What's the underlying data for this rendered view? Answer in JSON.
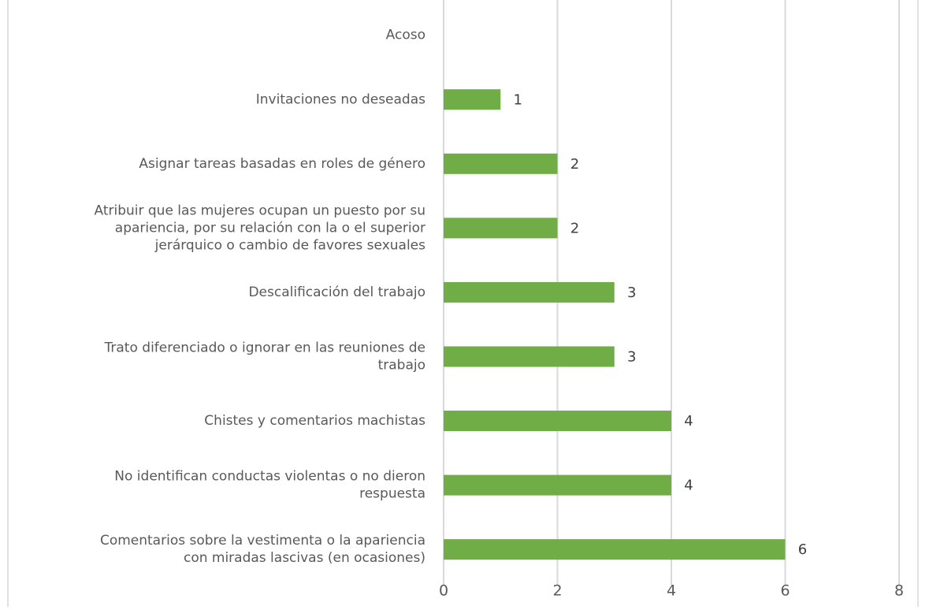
{
  "chart_data": {
    "type": "bar",
    "orientation": "horizontal",
    "categories": [
      "Acoso",
      "Invitaciones no deseadas",
      "Asignar tareas basadas en roles de género",
      "Atribuir que las mujeres ocupan un puesto por su\napariencia, por su relación con la o el superior\njerárquico o cambio de favores sexuales",
      "Descalificación del trabajo",
      "Trato diferenciado o ignorar en las reuniones de\ntrabajo",
      "Chistes y comentarios machistas",
      "No identifican conductas violentas o no dieron\nrespuesta",
      "Comentarios sobre la vestimenta o la apariencia\ncon miradas lascivas (en ocasiones)"
    ],
    "values": [
      null,
      1,
      2,
      2,
      3,
      3,
      4,
      4,
      6
    ],
    "color": "#70ad47",
    "xlim": [
      0,
      8
    ],
    "xticks": [
      0,
      2,
      4,
      6,
      8
    ],
    "grid": true
  }
}
